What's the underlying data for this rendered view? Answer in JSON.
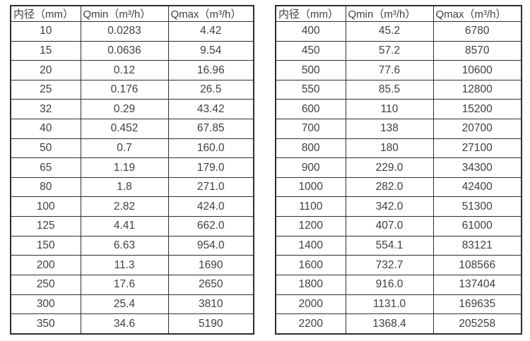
{
  "page": {
    "background_color": "#ffffff",
    "border_color": "#2e2e2e",
    "text_color": "#3f3f3f"
  },
  "tables": [
    {
      "name": "left-spec-table",
      "headers": [
        "内径（mm）",
        "Qmin（m³/h）",
        "Qmax（m³/h）"
      ],
      "rows": [
        [
          "10",
          "0.0283",
          "4.42"
        ],
        [
          "15",
          "0.0636",
          "9.54"
        ],
        [
          "20",
          "0.12",
          "16.96"
        ],
        [
          "25",
          "0.176",
          "26.5"
        ],
        [
          "32",
          "0.29",
          "43.42"
        ],
        [
          "40",
          "0.452",
          "67.85"
        ],
        [
          "50",
          "0.7",
          "160.0"
        ],
        [
          "65",
          "1.19",
          "179.0"
        ],
        [
          "80",
          "1.8",
          "271.0"
        ],
        [
          "100",
          "2.82",
          "424.0"
        ],
        [
          "125",
          "4.41",
          "662.0"
        ],
        [
          "150",
          "6.63",
          "954.0"
        ],
        [
          "200",
          "11.3",
          "1690"
        ],
        [
          "250",
          "17.6",
          "2650"
        ],
        [
          "300",
          "25.4",
          "3810"
        ],
        [
          "350",
          "34.6",
          "5190"
        ]
      ]
    },
    {
      "name": "right-spec-table",
      "headers": [
        "内径（mm）",
        "Qmin（m³/h）",
        "Qmax（m³/h）"
      ],
      "rows": [
        [
          "400",
          "45.2",
          "6780"
        ],
        [
          "450",
          "57.2",
          "8570"
        ],
        [
          "500",
          "77.6",
          "10600"
        ],
        [
          "550",
          "85.5",
          "12800"
        ],
        [
          "600",
          "110",
          "15200"
        ],
        [
          "700",
          "138",
          "20700"
        ],
        [
          "800",
          "180",
          "27100"
        ],
        [
          "900",
          "229.0",
          "34300"
        ],
        [
          "1000",
          "282.0",
          "42400"
        ],
        [
          "1100",
          "342.0",
          "51300"
        ],
        [
          "1200",
          "407.0",
          "61000"
        ],
        [
          "1400",
          "554.1",
          "83121"
        ],
        [
          "1600",
          "732.7",
          "108566"
        ],
        [
          "1800",
          "916.0",
          "137404"
        ],
        [
          "2000",
          "1131.0",
          "169635"
        ],
        [
          "2200",
          "1368.4",
          "205258"
        ]
      ]
    }
  ]
}
